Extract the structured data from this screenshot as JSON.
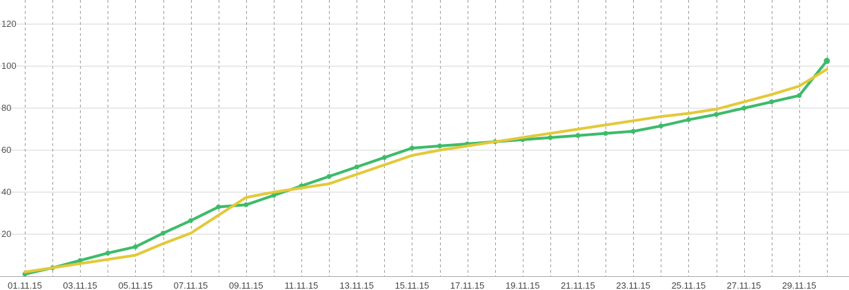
{
  "chart_data": {
    "type": "line",
    "categories": [
      "01.11.15",
      "02.11.15",
      "03.11.15",
      "04.11.15",
      "05.11.15",
      "06.11.15",
      "07.11.15",
      "08.11.15",
      "09.11.15",
      "10.11.15",
      "11.11.15",
      "12.11.15",
      "13.11.15",
      "14.11.15",
      "15.11.15",
      "16.11.15",
      "17.11.15",
      "18.11.15",
      "19.11.15",
      "20.11.15",
      "21.11.15",
      "22.11.15",
      "23.11.15",
      "24.11.15",
      "25.11.15",
      "26.11.15",
      "27.11.15",
      "28.11.15",
      "29.11.15",
      "30.11.15"
    ],
    "x_tick_labels": [
      "01.11.15",
      "03.11.15",
      "05.11.15",
      "07.11.15",
      "09.11.15",
      "11.11.15",
      "13.11.15",
      "15.11.15",
      "17.11.15",
      "19.11.15",
      "21.11.15",
      "23.11.15",
      "25.11.15",
      "27.11.15",
      "29.11.15"
    ],
    "y_ticks": [
      20,
      40,
      60,
      80,
      100,
      120
    ],
    "ylim": [
      0,
      125
    ],
    "grid": true,
    "series": [
      {
        "color": "#3dbb6a",
        "markers": true,
        "values": [
          1,
          4,
          7.5,
          11,
          14,
          20.5,
          26.5,
          33,
          34,
          38.5,
          43,
          47.5,
          52,
          56.5,
          61,
          62,
          63,
          64,
          65,
          66,
          67,
          68,
          69,
          71.5,
          74.5,
          77,
          80,
          83,
          86,
          102.5
        ]
      },
      {
        "color": "#e3c93a",
        "markers": false,
        "values": [
          2,
          4,
          6,
          8,
          10,
          15.5,
          20.5,
          29,
          37.5,
          40,
          42,
          44,
          48.5,
          53,
          57.5,
          60,
          62,
          64,
          66,
          68,
          70,
          72,
          74,
          76,
          77.5,
          79.5,
          83,
          86.5,
          90.5,
          98.5
        ]
      }
    ],
    "colors": {
      "grid_h": "#d6d6d6",
      "grid_v": "#9a9a9a",
      "axis": "#aaaaaa"
    }
  }
}
